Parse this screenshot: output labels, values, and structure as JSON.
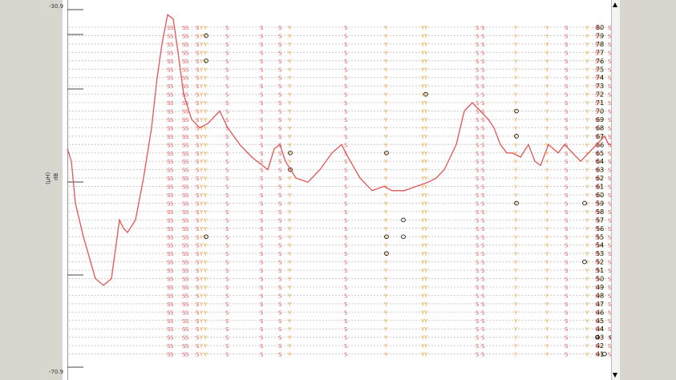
{
  "axis": {
    "top_label": "-30.9",
    "bottom_label": "-70.9",
    "unit_label": "(µH)",
    "unit_label2": "dB"
  },
  "scrollbar": {
    "up_icon": "arrow-up-icon",
    "down_icon": "arrow-down-icon"
  },
  "colors": {
    "curve": "#e25555",
    "s_mark": "#e36060",
    "v_mark": "#f0a030",
    "o_mark": "#000000",
    "grid": "#cccccc"
  },
  "chart_data": {
    "type": "line",
    "rows": [
      80,
      79,
      78,
      77,
      76,
      75,
      74,
      73,
      72,
      71,
      70,
      69,
      68,
      67,
      66,
      65,
      64,
      63,
      62,
      61,
      60,
      59,
      58,
      57,
      56,
      55,
      54,
      53,
      52,
      51,
      50,
      49,
      48,
      47,
      46,
      45,
      44,
      43,
      42,
      41
    ],
    "curve": [
      [
        0,
        65.5
      ],
      [
        5,
        64
      ],
      [
        10,
        59
      ],
      [
        20,
        55
      ],
      [
        35,
        50
      ],
      [
        45,
        49.2
      ],
      [
        55,
        50
      ],
      [
        65,
        57
      ],
      [
        70,
        56
      ],
      [
        75,
        55.5
      ],
      [
        85,
        57
      ],
      [
        95,
        62
      ],
      [
        105,
        68
      ],
      [
        112,
        74
      ],
      [
        118,
        78
      ],
      [
        125,
        81.5
      ],
      [
        132,
        81
      ],
      [
        138,
        77
      ],
      [
        145,
        72
      ],
      [
        155,
        69
      ],
      [
        165,
        68
      ],
      [
        175,
        68.5
      ],
      [
        190,
        70
      ],
      [
        200,
        68
      ],
      [
        215,
        66
      ],
      [
        230,
        64.5
      ],
      [
        250,
        63
      ],
      [
        258,
        65.5
      ],
      [
        265,
        66
      ],
      [
        272,
        64
      ],
      [
        285,
        62
      ],
      [
        300,
        61.5
      ],
      [
        315,
        63
      ],
      [
        330,
        65
      ],
      [
        342,
        66
      ],
      [
        350,
        64.5
      ],
      [
        365,
        62
      ],
      [
        380,
        60.5
      ],
      [
        395,
        61
      ],
      [
        405,
        60.5
      ],
      [
        420,
        60.5
      ],
      [
        435,
        61
      ],
      [
        450,
        61.5
      ],
      [
        460,
        62
      ],
      [
        470,
        63
      ],
      [
        485,
        66
      ],
      [
        495,
        70
      ],
      [
        505,
        71
      ],
      [
        515,
        70
      ],
      [
        525,
        69
      ],
      [
        532,
        68
      ],
      [
        540,
        66
      ],
      [
        548,
        65
      ],
      [
        555,
        65
      ],
      [
        565,
        64.5
      ],
      [
        575,
        66
      ],
      [
        583,
        64
      ],
      [
        590,
        63.5
      ],
      [
        600,
        66
      ],
      [
        612,
        65
      ],
      [
        620,
        66
      ],
      [
        630,
        65
      ],
      [
        640,
        64
      ],
      [
        650,
        65
      ],
      [
        660,
        66
      ],
      [
        670,
        67
      ],
      [
        675,
        66
      ],
      [
        683,
        66
      ]
    ],
    "s_columns": [
      124,
      128,
      143,
      147,
      160,
      197,
      240,
      263,
      345,
      509,
      516,
      620,
      658,
      674
    ],
    "v_columns": [
      165,
      170,
      275,
      395,
      441,
      445,
      557,
      596,
      646,
      662
    ],
    "o_marks": [
      {
        "x": 170,
        "y": 79
      },
      {
        "x": 170,
        "y": 76
      },
      {
        "x": 170,
        "y": 55
      },
      {
        "x": 275,
        "y": 65
      },
      {
        "x": 275,
        "y": 63
      },
      {
        "x": 395,
        "y": 65
      },
      {
        "x": 395,
        "y": 55
      },
      {
        "x": 395,
        "y": 53
      },
      {
        "x": 416,
        "y": 57
      },
      {
        "x": 416,
        "y": 55
      },
      {
        "x": 444,
        "y": 72
      },
      {
        "x": 557,
        "y": 70
      },
      {
        "x": 557,
        "y": 67
      },
      {
        "x": 557,
        "y": 59
      },
      {
        "x": 642,
        "y": 59
      },
      {
        "x": 642,
        "y": 52
      },
      {
        "x": 658,
        "y": 43
      },
      {
        "x": 667,
        "y": 41
      },
      {
        "x": 676,
        "y": 43
      }
    ],
    "y_range": [
      40.5,
      81.5
    ],
    "x_range": [
      0,
      690
    ]
  }
}
